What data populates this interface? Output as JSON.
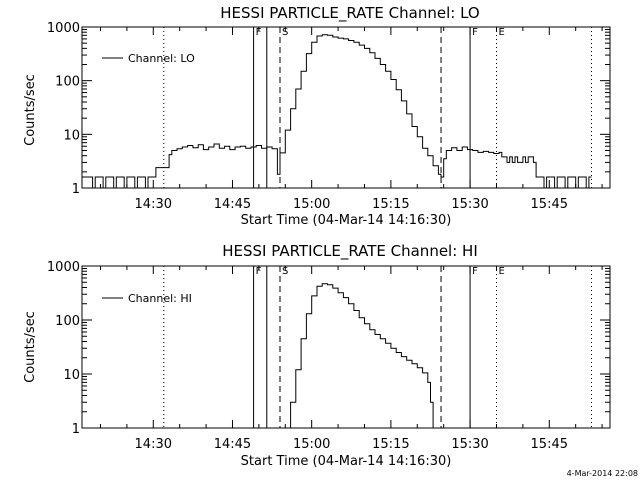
{
  "chart_data": [
    {
      "type": "line",
      "title": "HESSI PARTICLE_RATE Channel: LO",
      "xlabel": "Start Time (04-Mar-14 14:16:30)",
      "ylabel": "Counts/sec",
      "yscale": "log",
      "xlim": [
        "14:16:30",
        "15:56:30"
      ],
      "ylim": [
        1,
        1000
      ],
      "x_ticks": [
        "14:30",
        "14:45",
        "15:00",
        "15:15",
        "15:30",
        "15:45"
      ],
      "y_ticks": [
        "1",
        "10",
        "100",
        "1000"
      ],
      "grid": false,
      "legend": "top-left",
      "markers": [
        {
          "time": "14:32:00",
          "style": "dotted",
          "label": ""
        },
        {
          "time": "14:49:00",
          "style": "solid",
          "label": "F"
        },
        {
          "time": "14:51:30",
          "style": "solid",
          "label": ""
        },
        {
          "time": "14:54:00",
          "style": "dashed",
          "label": "S"
        },
        {
          "time": "15:24:30",
          "style": "dashed",
          "label": ""
        },
        {
          "time": "15:30:00",
          "style": "solid",
          "label": "F"
        },
        {
          "time": "15:35:00",
          "style": "dotted",
          "label": "E"
        },
        {
          "time": "15:53:00",
          "style": "dotted",
          "label": ""
        }
      ],
      "series": [
        {
          "name": "Channel: LO",
          "x": [
            "14:16:30",
            "14:18:00",
            "14:18:30",
            "14:19:00",
            "14:20:00",
            "14:20:30",
            "14:21:00",
            "14:22:00",
            "14:22:30",
            "14:23:00",
            "14:24:00",
            "14:24:30",
            "14:25:00",
            "14:26:00",
            "14:26:30",
            "14:27:00",
            "14:28:00",
            "14:28:30",
            "14:29:00",
            "14:30:00",
            "14:30:30",
            "14:32:00",
            "14:32:30",
            "14:33:00",
            "14:33:30",
            "14:34:30",
            "14:35:30",
            "14:36:30",
            "14:37:30",
            "14:38:30",
            "14:39:30",
            "14:40:30",
            "14:41:30",
            "14:42:30",
            "14:43:30",
            "14:44:30",
            "14:45:30",
            "14:46:30",
            "14:47:30",
            "14:48:30",
            "14:49:30",
            "14:50:30",
            "14:51:30",
            "14:52:30",
            "14:53:30",
            "14:54:00",
            "14:55:00",
            "14:56:00",
            "14:57:00",
            "14:58:00",
            "14:59:00",
            "15:00:00",
            "15:01:00",
            "15:02:00",
            "15:03:00",
            "15:04:00",
            "15:05:00",
            "15:06:00",
            "15:07:00",
            "15:08:00",
            "15:09:00",
            "15:10:00",
            "15:11:00",
            "15:12:00",
            "15:13:00",
            "15:14:00",
            "15:15:00",
            "15:16:00",
            "15:17:00",
            "15:18:00",
            "15:19:00",
            "15:20:00",
            "15:21:00",
            "15:22:00",
            "15:23:00",
            "15:24:00",
            "15:24:30",
            "15:25:00",
            "15:25:30",
            "15:26:30",
            "15:27:30",
            "15:28:30",
            "15:29:30",
            "15:30:30",
            "15:31:30",
            "15:32:30",
            "15:33:30",
            "15:34:30",
            "15:35:30",
            "15:36:00",
            "15:37:00",
            "15:37:30",
            "15:38:00",
            "15:38:30",
            "15:39:00",
            "15:40:00",
            "15:40:30",
            "15:41:00",
            "15:42:00",
            "15:42:30",
            "15:43:00",
            "15:44:00",
            "15:44:30",
            "15:45:00",
            "15:46:00",
            "15:46:30",
            "15:47:00",
            "15:48:00",
            "15:48:30",
            "15:49:00",
            "15:50:00",
            "15:50:30",
            "15:51:00",
            "15:52:00",
            "15:52:30",
            "15:53:00"
          ],
          "y": [
            1.6,
            1.6,
            1,
            1.6,
            1.6,
            1,
            1.6,
            1.6,
            1,
            1.6,
            1.6,
            1,
            1.6,
            1.6,
            1,
            1.6,
            1.6,
            1,
            1.6,
            1.6,
            2.4,
            2.4,
            2.4,
            4.2,
            5,
            5.4,
            5.8,
            6.2,
            5.6,
            6.4,
            5.2,
            5.8,
            6.6,
            5.5,
            6,
            5.2,
            5.8,
            6,
            5.5,
            5.8,
            6.2,
            5.5,
            5.8,
            5.4,
            1.8,
            4.5,
            12,
            30,
            70,
            150,
            320,
            520,
            680,
            720,
            700,
            650,
            620,
            600,
            560,
            520,
            460,
            400,
            330,
            260,
            200,
            150,
            105,
            68,
            42,
            24,
            14,
            9,
            5.5,
            4,
            2.6,
            1.8,
            1.6,
            3.5,
            5,
            5.6,
            5,
            5.8,
            5.2,
            5,
            4.6,
            4.8,
            4.6,
            4.4,
            4.6,
            3.8,
            3,
            3.8,
            3,
            3.8,
            3,
            3.8,
            3,
            3.8,
            3,
            1.6,
            1.6,
            1,
            1.6,
            1.6,
            1,
            1.6,
            1.6,
            1,
            1.6,
            1.6,
            1,
            1.6,
            1.6,
            1,
            1.6,
            1.6
          ]
        }
      ]
    },
    {
      "type": "line",
      "title": "HESSI PARTICLE_RATE Channel: HI",
      "xlabel": "Start Time (04-Mar-14 14:16:30)",
      "ylabel": "Counts/sec",
      "yscale": "log",
      "xlim": [
        "14:16:30",
        "15:56:30"
      ],
      "ylim": [
        1,
        1000
      ],
      "x_ticks": [
        "14:30",
        "14:45",
        "15:00",
        "15:15",
        "15:30",
        "15:45"
      ],
      "y_ticks": [
        "1",
        "10",
        "100",
        "1000"
      ],
      "grid": false,
      "legend": "top-left",
      "markers": [
        {
          "time": "14:32:00",
          "style": "dotted",
          "label": ""
        },
        {
          "time": "14:49:00",
          "style": "solid",
          "label": "F"
        },
        {
          "time": "14:51:30",
          "style": "solid",
          "label": ""
        },
        {
          "time": "14:54:00",
          "style": "dashed",
          "label": "S"
        },
        {
          "time": "15:24:30",
          "style": "dashed",
          "label": ""
        },
        {
          "time": "15:30:00",
          "style": "solid",
          "label": "F"
        },
        {
          "time": "15:35:00",
          "style": "dotted",
          "label": "E"
        },
        {
          "time": "15:53:00",
          "style": "dotted",
          "label": ""
        }
      ],
      "series": [
        {
          "name": "Channel: HI",
          "x": [
            "14:55:20",
            "14:56:00",
            "14:57:00",
            "14:58:00",
            "14:59:00",
            "15:00:00",
            "15:01:00",
            "15:02:00",
            "15:03:00",
            "15:04:00",
            "15:05:00",
            "15:06:00",
            "15:07:00",
            "15:08:00",
            "15:09:00",
            "15:10:00",
            "15:11:00",
            "15:12:00",
            "15:13:00",
            "15:14:00",
            "15:15:00",
            "15:16:00",
            "15:17:00",
            "15:18:00",
            "15:19:00",
            "15:20:00",
            "15:21:00",
            "15:22:00",
            "15:22:30",
            "15:23:00"
          ],
          "y": [
            1,
            3,
            12,
            45,
            130,
            280,
            420,
            470,
            450,
            390,
            320,
            260,
            200,
            150,
            110,
            85,
            66,
            54,
            45,
            37,
            30,
            25,
            21,
            18,
            15.5,
            13,
            10.5,
            7,
            3,
            1
          ]
        }
      ]
    }
  ],
  "footer": {
    "timestamp": "4-Mar-2014 22:08"
  }
}
